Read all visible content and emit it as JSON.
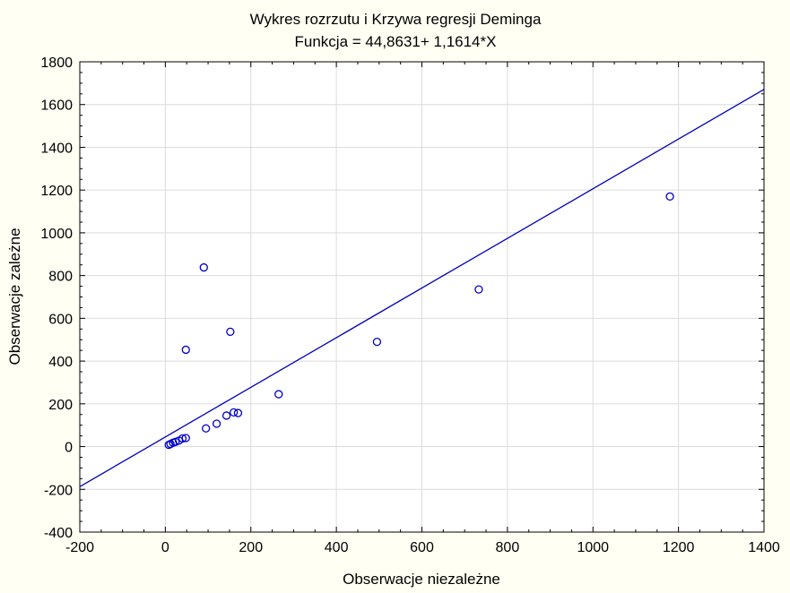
{
  "chart_data": {
    "type": "scatter",
    "title": "Wykres rozrzutu i Krzywa regresji Deminga",
    "subtitle": "Funkcja =  44,8631+ 1,1614*X",
    "xlabel": "Obserwacje niezależne",
    "ylabel": "Obserwacje zależne",
    "xlim": [
      -200,
      1400
    ],
    "ylim": [
      -400,
      1800
    ],
    "x_ticks": [
      -200,
      0,
      200,
      400,
      600,
      800,
      1000,
      1200,
      1400
    ],
    "y_ticks": [
      -400,
      -200,
      0,
      200,
      400,
      600,
      800,
      1000,
      1200,
      1400,
      1600,
      1800
    ],
    "grid": true,
    "regression": {
      "intercept": 44.8631,
      "slope": 1.1614
    },
    "points": [
      {
        "x": 8,
        "y": 8
      },
      {
        "x": 12,
        "y": 12
      },
      {
        "x": 18,
        "y": 18
      },
      {
        "x": 24,
        "y": 22
      },
      {
        "x": 32,
        "y": 28
      },
      {
        "x": 40,
        "y": 38
      },
      {
        "x": 48,
        "y": 40
      },
      {
        "x": 48,
        "y": 453
      },
      {
        "x": 90,
        "y": 838
      },
      {
        "x": 95,
        "y": 85
      },
      {
        "x": 120,
        "y": 107
      },
      {
        "x": 143,
        "y": 145
      },
      {
        "x": 152,
        "y": 537
      },
      {
        "x": 160,
        "y": 160
      },
      {
        "x": 170,
        "y": 157
      },
      {
        "x": 265,
        "y": 245
      },
      {
        "x": 495,
        "y": 490
      },
      {
        "x": 733,
        "y": 735
      },
      {
        "x": 1180,
        "y": 1170
      }
    ],
    "colors": {
      "points": "#0000cc",
      "line": "#0000bb",
      "background": "#fffff4",
      "plot_area": "#ffffff"
    }
  }
}
